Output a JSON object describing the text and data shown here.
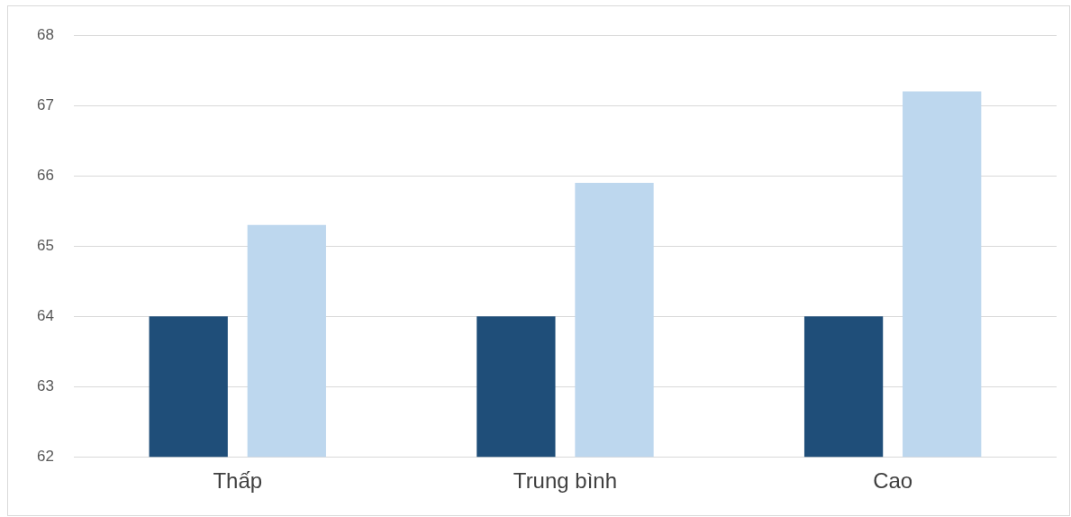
{
  "chart_data": {
    "type": "bar",
    "categories": [
      "Thấp",
      "Trung bình",
      "Cao"
    ],
    "series": [
      {
        "color": "#1f4e79",
        "values": [
          64,
          64,
          64
        ]
      },
      {
        "color": "#bdd7ee",
        "values": [
          65.3,
          65.9,
          67.2
        ]
      }
    ],
    "ylim": [
      62,
      68
    ],
    "yticks": [
      62,
      63,
      64,
      65,
      66,
      67,
      68
    ],
    "grid": "y",
    "legend": false
  }
}
